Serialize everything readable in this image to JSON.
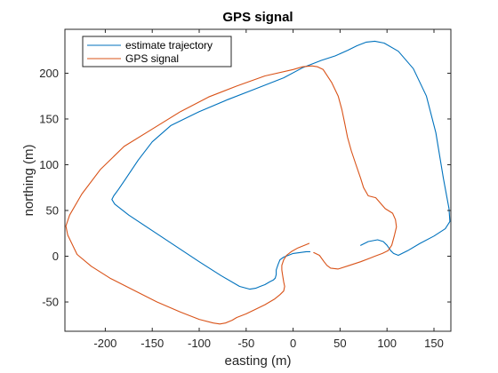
{
  "colors": {
    "estimate": "#0072BD",
    "gps": "#D95319",
    "axis": "#262626",
    "background": "#ffffff"
  },
  "chart_data": {
    "type": "line",
    "title": "GPS signal",
    "xlabel": "easting (m)",
    "ylabel": "northing (m)",
    "xlim": [
      -243,
      168
    ],
    "ylim": [
      -82,
      248
    ],
    "xticks": [
      -200,
      -150,
      -100,
      -50,
      0,
      50,
      100,
      150
    ],
    "xtick_labels": [
      "-200",
      "-150",
      "-100",
      "-50",
      "0",
      "50",
      "100",
      "150"
    ],
    "yticks": [
      -50,
      0,
      50,
      100,
      150,
      200
    ],
    "ytick_labels": [
      "-50",
      "0",
      "50",
      "100",
      "150",
      "200"
    ],
    "grid": false,
    "legend_position": "top-left",
    "series": [
      {
        "name": "estimate trajectory",
        "color": "#0072BD",
        "x": [
          72,
          80,
          90,
          96,
          100,
          104,
          107,
          112,
          122,
          135,
          150,
          162,
          167,
          166,
          160,
          152,
          142,
          128,
          112,
          97,
          87,
          78,
          68,
          58,
          45,
          30,
          10,
          -10,
          -40,
          -70,
          -100,
          -130,
          -150,
          -165,
          -178,
          -186,
          -191,
          -193,
          -190,
          -175,
          -150,
          -125,
          -100,
          -77,
          -57,
          -46,
          -40,
          -35,
          -30,
          -25,
          -21,
          -19,
          -18,
          -18,
          -16,
          -14,
          -10,
          -5,
          0,
          7,
          14,
          18
        ],
        "y": [
          12,
          16,
          18,
          16,
          12,
          6,
          3,
          1,
          6,
          14,
          22,
          30,
          38,
          52,
          85,
          135,
          175,
          205,
          224,
          233,
          235,
          234,
          230,
          225,
          219,
          214,
          206,
          195,
          183,
          171,
          158,
          143,
          125,
          105,
          85,
          73,
          66,
          62,
          57,
          45,
          28,
          11,
          -6,
          -21,
          -33,
          -36,
          -35,
          -33,
          -31,
          -28,
          -26,
          -24,
          -20,
          -15,
          -9,
          -4,
          -1,
          1,
          3,
          4,
          5,
          5
        ]
      },
      {
        "name": "GPS signal",
        "color": "#D95319",
        "x": [
          17,
          12,
          5,
          -2,
          -7,
          -10,
          -12,
          -12,
          -11,
          -10,
          -9,
          -10,
          -14,
          -20,
          -30,
          -40,
          -50,
          -60,
          -65,
          -72,
          -78,
          -85,
          -100,
          -120,
          -145,
          -170,
          -195,
          -215,
          -230,
          -240,
          -242,
          -238,
          -225,
          -205,
          -180,
          -150,
          -120,
          -90,
          -60,
          -30,
          0,
          10,
          20,
          26,
          32,
          41,
          48,
          52,
          55,
          58,
          62,
          67,
          72,
          75,
          80,
          88,
          98,
          106,
          109,
          110,
          108,
          105,
          101,
          95,
          87,
          82,
          72,
          60,
          48,
          40,
          36,
          33,
          28,
          22
        ],
        "y": [
          14,
          12,
          9,
          5,
          1,
          -4,
          -10,
          -15,
          -22,
          -28,
          -33,
          -38,
          -42,
          -47,
          -53,
          -58,
          -63,
          -67,
          -70,
          -73,
          -74,
          -73,
          -69,
          -61,
          -50,
          -37,
          -24,
          -11,
          2,
          23,
          33,
          45,
          68,
          95,
          120,
          139,
          158,
          174,
          186,
          197,
          204,
          207,
          208,
          207,
          204,
          190,
          175,
          160,
          145,
          130,
          115,
          100,
          85,
          75,
          66,
          64,
          52,
          47,
          40,
          32,
          23,
          12,
          6,
          3,
          0,
          -2,
          -6,
          -10,
          -14,
          -13,
          -10,
          -6,
          1,
          4
        ]
      }
    ]
  }
}
